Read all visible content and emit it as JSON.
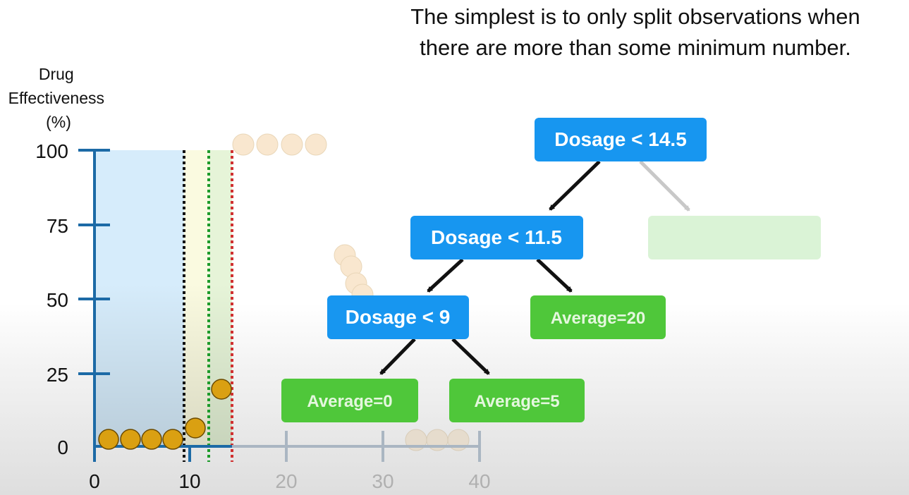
{
  "caption": {
    "line1": "The simplest is to only split observations when",
    "line2": "there are more than some minimum number."
  },
  "plot": {
    "ylabel_lines": [
      "Drug",
      "Effectiveness",
      "(%)"
    ],
    "y_ticks": [
      "100",
      "75",
      "50",
      "25",
      "0"
    ],
    "x_ticks": [
      "0",
      "10",
      "20",
      "30",
      "40"
    ]
  },
  "tree": {
    "root": "Dosage < 14.5",
    "mid": "Dosage < 11.5",
    "low": "Dosage < 9",
    "leaf_mid": "Average=20",
    "leaf_low_left": "Average=0",
    "leaf_low_right": "Average=5"
  },
  "colors": {
    "axis": "#1c6aa6",
    "node_blue": "#1796f0",
    "leaf_green": "#4fc73a",
    "faded_green": "#daf3d6",
    "point_active": "#daa012",
    "point_faded": "#f9e7cf",
    "region_blue": "#d6ecfb",
    "region_yellow": "#fafae0",
    "region_green": "#e6f4d8"
  }
}
